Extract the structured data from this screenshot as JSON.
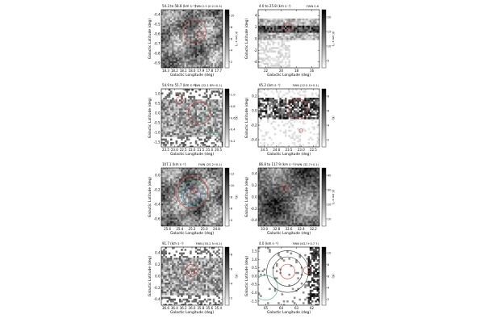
{
  "figure": {
    "panels": [
      {
        "id": "p1",
        "header_left": "54.3 to 58.8 (km s⁻¹)",
        "header_right": "FWN 2.5 (0.2+0.3)",
        "ylabel": "Galactic Latitude (deg)",
        "xlabel": "Galactic Longitude (deg)",
        "xticks": [
          "18.3",
          "18.2",
          "18.1",
          "18.0",
          "17.9",
          "17.8",
          "17.7"
        ],
        "yticks": [
          "-0.4",
          "-0.5",
          "-0.6",
          "-0.7",
          "-0.8",
          "-0.9"
        ],
        "cbar_label": "(K km s⁻¹)",
        "cbar_ticks": [
          "10",
          "8",
          "6",
          "4",
          "2"
        ],
        "texture": "dark",
        "circles": [
          {
            "cx": 0.55,
            "cy": 0.38,
            "r": 0.18,
            "color": "#cc3333"
          },
          {
            "cx": 0.62,
            "cy": 0.42,
            "r": 0.04,
            "color": "#cc3333"
          }
        ]
      },
      {
        "id": "p2",
        "header_left": "4.0 to 25.8 (km s⁻¹)",
        "header_right": "FWN 5.6",
        "ylabel": "Galactic Latitude (deg)",
        "xlabel": "Galactic Longitude (deg)",
        "xticks": [
          "22",
          "20",
          "18",
          "16"
        ],
        "yticks": [
          "4",
          "2",
          "0",
          "-2",
          "-4"
        ],
        "cbar_label": "(K km s⁻¹)",
        "cbar_ticks": [
          "20",
          "15",
          "10",
          "5"
        ],
        "texture": "band",
        "circles": [
          {
            "cx": 0.48,
            "cy": 0.3,
            "r": 0.07,
            "color": "#cc3333"
          }
        ]
      },
      {
        "id": "p3",
        "header_left": "54.9 to 55.7 (km s⁻¹)",
        "header_right": "FWN (22.1 RR+0.1)",
        "ylabel": "Galactic Latitude (deg)",
        "xlabel": "Galactic Longitude (deg)",
        "xticks": [
          "23.5",
          "23.0",
          "22.5",
          "22.0",
          "21.5",
          "21.0",
          "20.5"
        ],
        "yticks": [
          "1.0",
          "0.5",
          "0.0",
          "-0.5",
          "-1.0",
          "-1.5"
        ],
        "cbar_label": "(K)",
        "cbar_ticks": [
          "1.0",
          "0.8",
          "0.6",
          "0.4",
          "0.2"
        ],
        "texture": "medium",
        "circles": [
          {
            "cx": 0.3,
            "cy": 0.2,
            "r": 0.06,
            "color": "#cc3333"
          },
          {
            "cx": 0.62,
            "cy": 0.42,
            "r": 0.18,
            "color": "#cc3333"
          },
          {
            "cx": 0.88,
            "cy": 0.55,
            "r": 0.22,
            "color": "#44aa88"
          }
        ]
      },
      {
        "id": "p4",
        "header_left": "95.2 (km s⁻¹)",
        "header_right": "FWN (22.5 S+0.1)",
        "ylabel": "Galactic Latitude (deg)",
        "xlabel": "Galactic Longitude (deg)",
        "xticks": [
          "24.5",
          "24.0",
          "23.5",
          "23.0",
          "22.5"
        ],
        "yticks": [
          "0.2",
          "0.0",
          "-0.2",
          "-0.4"
        ],
        "cbar_label": "(K)",
        "cbar_ticks": [
          "8",
          "6",
          "4",
          "2"
        ],
        "texture": "sparse",
        "circles": [
          {
            "cx": 0.66,
            "cy": 0.35,
            "r": 0.16,
            "color": "#cc3333"
          },
          {
            "cx": 0.7,
            "cy": 0.72,
            "r": 0.03,
            "color": "#cc3333"
          }
        ]
      },
      {
        "id": "p5",
        "header_left": "107.1 (km s⁻¹)",
        "header_right": "FWN (25.2+0.1)",
        "ylabel": "Galactic Latitude (deg)",
        "xlabel": "Galactic Longitude (deg)",
        "xticks": [
          "25.6",
          "25.4",
          "25.2",
          "25.0",
          "24.8"
        ],
        "yticks": [
          "0.0",
          "-0.2",
          "-0.4",
          "-0.6"
        ],
        "cbar_label": "(K)",
        "cbar_ticks": [
          "12",
          "10",
          "8",
          "6",
          "4"
        ],
        "texture": "dark",
        "circles": [
          {
            "cx": 0.5,
            "cy": 0.42,
            "r": 0.26,
            "color": "#cc3333"
          },
          {
            "cx": 0.52,
            "cy": 0.45,
            "r": 0.2,
            "color": "#44aa88"
          },
          {
            "cx": 0.5,
            "cy": 0.48,
            "r": 0.14,
            "color": "#3366cc"
          },
          {
            "cx": 0.55,
            "cy": 0.38,
            "r": 0.04,
            "color": "#cc3333"
          }
        ]
      },
      {
        "id": "p6",
        "header_left": "86.8 to 117.9 (km s⁻¹)",
        "header_right": "FWN (32.7+0.1)",
        "ylabel": "Galactic Latitude (deg)",
        "xlabel": "Galactic Longitude (deg)",
        "xticks": [
          "33.0",
          "32.8",
          "32.6",
          "32.4",
          "32.2"
        ],
        "yticks": [
          "0.4",
          "0.2",
          "0.0",
          "-0.2",
          "-0.4"
        ],
        "cbar_label": "(K km s⁻¹)",
        "cbar_ticks": [
          "40",
          "30",
          "20",
          "10"
        ],
        "texture": "full",
        "circles": [
          {
            "cx": 0.45,
            "cy": 0.35,
            "r": 0.05,
            "color": "#cc3333"
          }
        ]
      },
      {
        "id": "p7",
        "header_left": "91.7 (km s⁻¹)",
        "header_right": "FWN (35.2 5+0.2)",
        "ylabel": "Galactic Latitude (deg)",
        "xlabel": "Galactic Longitude (deg)",
        "xticks": [
          "36.6",
          "36.4",
          "36.2",
          "36.0",
          "35.8",
          "35.6",
          "35.4"
        ],
        "yticks": [
          "0.4",
          "0.2",
          "0.0",
          "-0.2",
          "-0.4"
        ],
        "cbar_label": "(K)",
        "cbar_ticks": [
          "8",
          "6",
          "4",
          "2"
        ],
        "texture": "medium",
        "circles": [
          {
            "cx": 0.5,
            "cy": 0.4,
            "r": 0.1,
            "color": "#cc3333"
          },
          {
            "cx": 0.52,
            "cy": 0.43,
            "r": 0.03,
            "color": "#cc3333"
          }
        ]
      },
      {
        "id": "p8",
        "header_left": "4.0 (km s⁻¹)",
        "header_right": "FWN (63.7+0.7 7)",
        "ylabel": "Galactic Latitude (deg)",
        "xlabel": "Galactic Longitude (deg)",
        "xticks": [
          "65",
          "64",
          "63",
          "62"
        ],
        "yticks": [
          "1.5",
          "1.0",
          "0.5",
          "0.0",
          "-0.5",
          "-1.0",
          "-1.5"
        ],
        "cbar_label": "(K)",
        "cbar_ticks": [
          "10",
          "8",
          "6",
          "4",
          "2"
        ],
        "texture": "right",
        "circles": [
          {
            "cx": 0.48,
            "cy": 0.42,
            "r": 0.34,
            "color": "#333333"
          },
          {
            "cx": 0.48,
            "cy": 0.42,
            "r": 0.24,
            "color": "#333333"
          },
          {
            "cx": 0.48,
            "cy": 0.42,
            "r": 0.12,
            "color": "#cc3333"
          },
          {
            "cx": 0.12,
            "cy": 0.7,
            "r": 0.2,
            "color": "#44aa88"
          },
          {
            "cx": 0.8,
            "cy": 0.4,
            "r": 0.06,
            "color": "#cc3333"
          }
        ]
      }
    ]
  }
}
